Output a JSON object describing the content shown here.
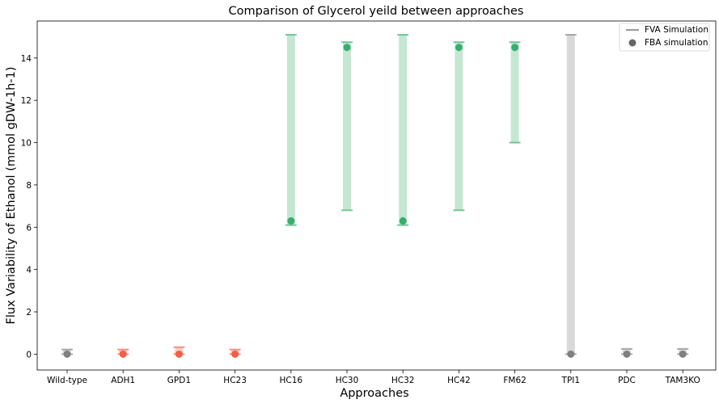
{
  "chart_data": {
    "type": "scatter",
    "title": "Comparison of Glycerol yeild between approaches",
    "xlabel": "Approaches",
    "ylabel": "Flux Variability of Ethanol (mmol gDW-1h-1)",
    "ylim": [
      -0.75,
      15.75
    ],
    "yticks": [
      "0",
      "2",
      "4",
      "6",
      "8",
      "10",
      "12",
      "14"
    ],
    "ytick_values": [
      0,
      2,
      4,
      6,
      8,
      10,
      12,
      14
    ],
    "grid": false,
    "legend_position": "top-right",
    "categories": [
      "Wild-type",
      "ADH1",
      "GPD1",
      "HC23",
      "HC16",
      "HC30",
      "HC32",
      "HC42",
      "FM62",
      "TPI1",
      "PDC",
      "TAM3KO"
    ],
    "series": [
      {
        "name": "FVA Simulation",
        "kind": "range",
        "min": [
          0.0,
          0.0,
          0.0,
          0.0,
          6.1,
          6.8,
          6.1,
          6.8,
          10.0,
          0.0,
          0.0,
          0.0
        ],
        "max": [
          0.22,
          0.22,
          0.33,
          0.22,
          15.1,
          14.75,
          15.1,
          14.75,
          14.75,
          15.1,
          0.25,
          0.25
        ]
      },
      {
        "name": "FBA simulation",
        "kind": "point",
        "values": [
          0.0,
          0.0,
          0.0,
          0.0,
          6.3,
          14.5,
          6.3,
          14.5,
          14.5,
          0.0,
          0.0,
          0.0
        ]
      }
    ],
    "category_colors": [
      "#808080",
      "#f15f48",
      "#f15f48",
      "#f15f48",
      "#37ae6b",
      "#37ae6b",
      "#37ae6b",
      "#37ae6b",
      "#37ae6b",
      "#808080",
      "#808080",
      "#808080"
    ],
    "colors": {
      "neutral": "#808080",
      "knockout": "#f15f48",
      "engineered": "#37ae6b",
      "legend_line": "#999999",
      "legend_marker": "#666666"
    }
  }
}
